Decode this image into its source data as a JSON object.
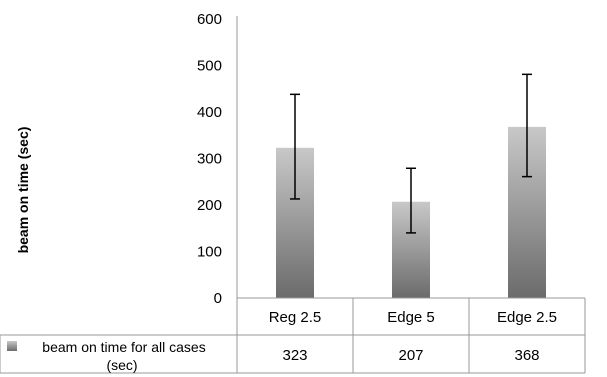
{
  "chart_data": {
    "type": "bar",
    "categories": [
      "Reg 2.5",
      "Edge 5",
      "Edge 2.5"
    ],
    "series": [
      {
        "name": "beam on time for all cases (sec)",
        "values": [
          323,
          207,
          368
        ],
        "error_low": [
          213,
          140,
          261
        ],
        "error_high": [
          438,
          279,
          481
        ]
      }
    ],
    "ylabel": "beam on time (sec)",
    "ylim": [
      0,
      600
    ],
    "yticks": [
      0,
      100,
      200,
      300,
      400,
      500,
      600
    ],
    "grid": false,
    "legend": "data-table",
    "data_table": true,
    "colors": {
      "bar_top": "#c8c8c8",
      "bar_bottom": "#6b6b6b",
      "axis": "#999999",
      "error": "#000000"
    }
  }
}
